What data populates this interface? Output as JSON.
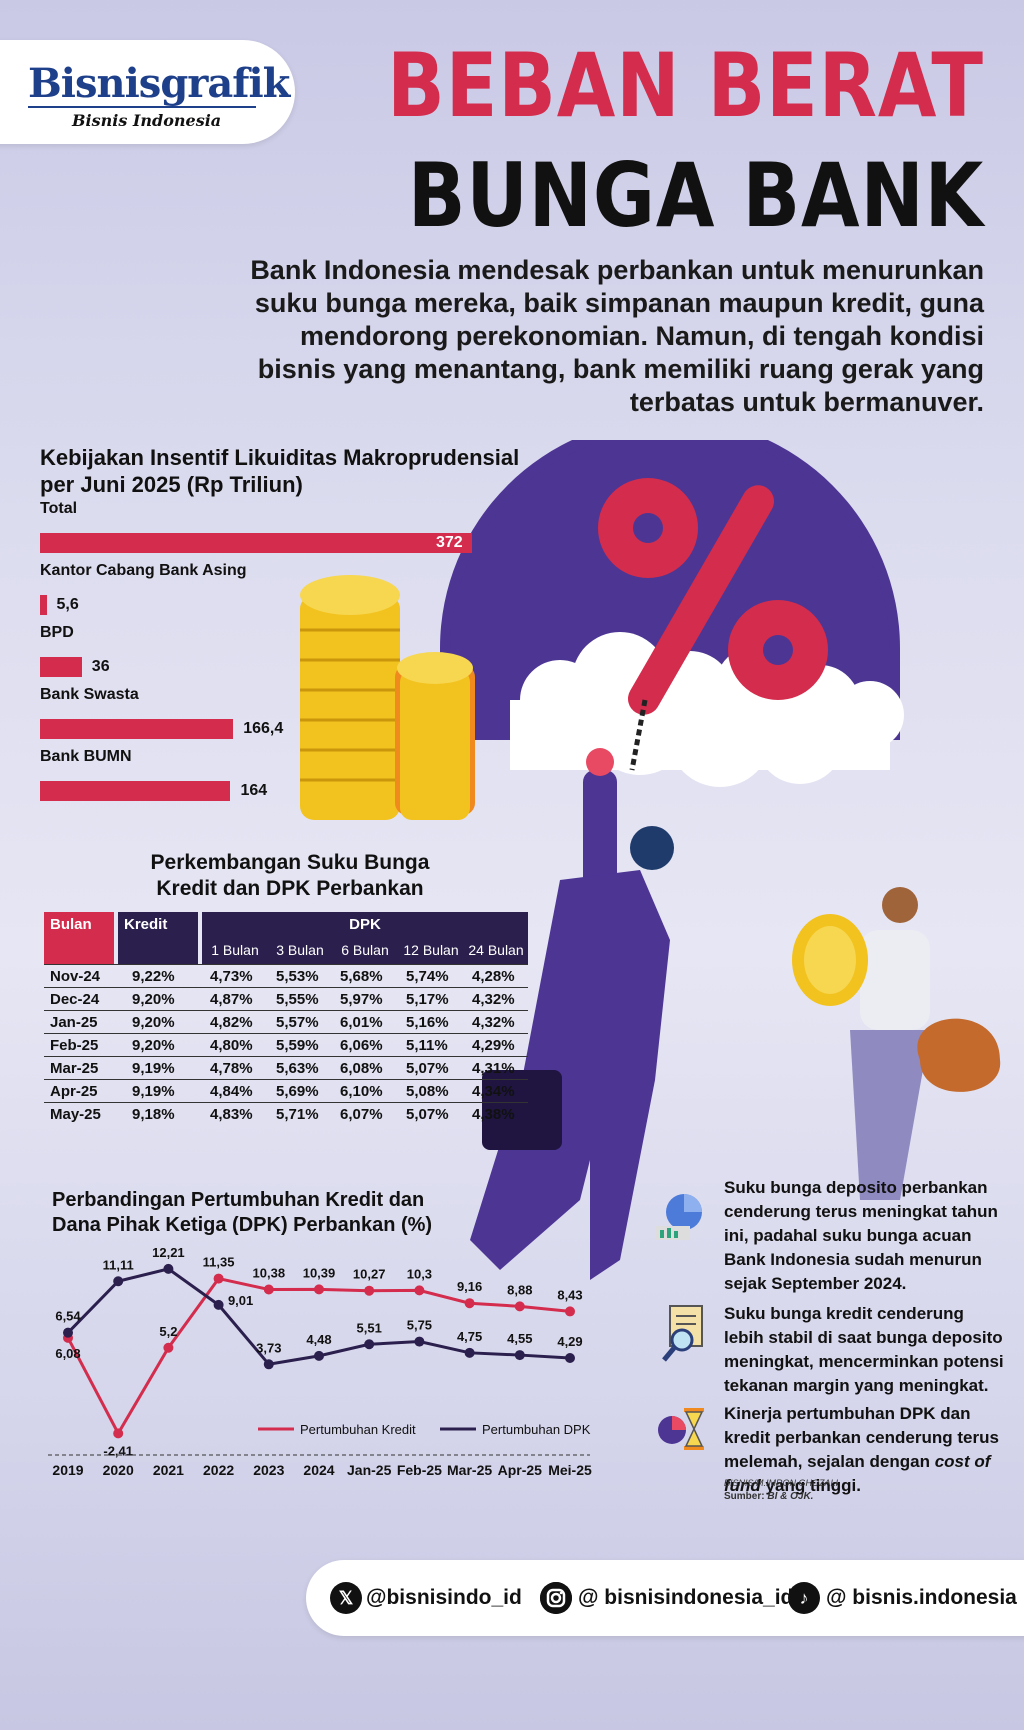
{
  "header": {
    "logo_main": "Bisnisgrafik",
    "logo_sub": "Bisnis Indonesia",
    "title_line1": "BEBAN BERAT",
    "title_line2": "BUNGA BANK",
    "intro": "Bank Indonesia mendesak perbankan untuk menurunkan suku bunga mereka, baik simpanan maupun kredit, guna mendorong perekonomian. Namun, di tengah kondisi bisnis yang menantang, bank memiliki ruang gerak yang terbatas untuk bermanuver."
  },
  "colors": {
    "accent_red": "#d42c4c",
    "navy": "#2b1f4e",
    "purple": "#4d3594"
  },
  "chart_data": [
    {
      "type": "bar",
      "title": "Kebijakan Insentif Likuiditas Makroprudensial per Juni 2025 (Rp Triliun)",
      "categories": [
        "Total",
        "Kantor Cabang Bank Asing",
        "BPD",
        "Bank Swasta",
        "Bank BUMN"
      ],
      "values": [
        372,
        5.6,
        36,
        166.4,
        164
      ],
      "value_labels": [
        "372",
        "5,6",
        "36",
        "166,4",
        "164"
      ],
      "xlim": [
        0,
        372
      ]
    },
    {
      "type": "table",
      "title": "Perkembangan Suku Bunga Kredit dan DPK Perbankan",
      "header_groups": {
        "bulan": "Bulan",
        "kredit": "Kredit",
        "dpk": "DPK"
      },
      "columns": [
        "1 Bulan",
        "3 Bulan",
        "6 Bulan",
        "12 Bulan",
        "24 Bulan"
      ],
      "rows": [
        {
          "bulan": "Nov-24",
          "kredit": "9,22%",
          "dpk": [
            "4,73%",
            "5,53%",
            "5,68%",
            "5,74%",
            "4,28%"
          ]
        },
        {
          "bulan": "Dec-24",
          "kredit": "9,20%",
          "dpk": [
            "4,87%",
            "5,55%",
            "5,97%",
            "5,17%",
            "4,32%"
          ]
        },
        {
          "bulan": "Jan-25",
          "kredit": "9,20%",
          "dpk": [
            "4,82%",
            "5,57%",
            "6,01%",
            "5,16%",
            "4,32%"
          ]
        },
        {
          "bulan": "Feb-25",
          "kredit": "9,20%",
          "dpk": [
            "4,80%",
            "5,59%",
            "6,06%",
            "5,11%",
            "4,29%"
          ]
        },
        {
          "bulan": "Mar-25",
          "kredit": "9,19%",
          "dpk": [
            "4,78%",
            "5,63%",
            "6,08%",
            "5,07%",
            "4,31%"
          ]
        },
        {
          "bulan": "Apr-25",
          "kredit": "9,19%",
          "dpk": [
            "4,84%",
            "5,69%",
            "6,10%",
            "5,08%",
            "4,34%"
          ]
        },
        {
          "bulan": "May-25",
          "kredit": "9,18%",
          "dpk": [
            "4,83%",
            "5,71%",
            "6,07%",
            "5,07%",
            "4,38%"
          ]
        }
      ]
    },
    {
      "type": "line",
      "title": "Perbandingan Pertumbuhan Kredit dan Dana Pihak Ketiga (DPK) Perbankan (%)",
      "categories": [
        "2019",
        "2020",
        "2021",
        "2022",
        "2023",
        "2024",
        "Jan-25",
        "Feb-25",
        "Mar-25",
        "Apr-25",
        "Mei-25"
      ],
      "series": [
        {
          "name": "Pertumbuhan Kredit",
          "color": "#d42c4c",
          "values": [
            6.08,
            -2.41,
            5.2,
            11.35,
            10.38,
            10.39,
            10.27,
            10.3,
            9.16,
            8.88,
            8.43
          ],
          "labels": [
            "6,08",
            "-2,41",
            "5,2",
            "11,35",
            "10,38",
            "10,39",
            "10,27",
            "10,3",
            "9,16",
            "8,88",
            "8,43"
          ]
        },
        {
          "name": "Pertumbuhan DPK",
          "color": "#2b1f4e",
          "values": [
            6.54,
            11.11,
            12.21,
            9.01,
            3.73,
            4.48,
            5.51,
            5.75,
            4.75,
            4.55,
            4.29
          ],
          "labels": [
            "6,54",
            "11,11",
            "12,21",
            "9,01",
            "3,73",
            "4,48",
            "5,51",
            "5,75",
            "4,75",
            "4,55",
            "4,29"
          ]
        }
      ],
      "ylim": [
        -3,
        13
      ],
      "legend": "bottom-right"
    }
  ],
  "facts": [
    {
      "icon": "pie-chart-icon",
      "text": "Suku bunga deposito perbankan cenderung terus meningkat tahun ini, padahal suku bunga acuan Bank Indonesia sudah menurun sejak September 2024."
    },
    {
      "icon": "magnifier-document-icon",
      "text": "Suku bunga kredit cenderung lebih stabil di saat bunga deposito meningkat, mencerminkan potensi tekanan margin yang meningkat."
    },
    {
      "icon": "hourglass-icon",
      "text_before": "Kinerja pertumbuhan DPK dan kredit perbankan cenderung terus melemah, sejalan dengan ",
      "text_italic": "cost of fund",
      "text_after": " yang tinggi."
    }
  ],
  "credits": {
    "author": "BISNIS/M.IMRON GHOZALI",
    "source_label": "Sumber:",
    "source": "BI & OJK."
  },
  "social": [
    {
      "icon": "x-icon",
      "handle": "@bisnisindo_id"
    },
    {
      "icon": "instagram-icon",
      "handle": "@ bisnisindonesia_id"
    },
    {
      "icon": "tiktok-icon",
      "handle": "@ bisnis.indonesia"
    }
  ]
}
